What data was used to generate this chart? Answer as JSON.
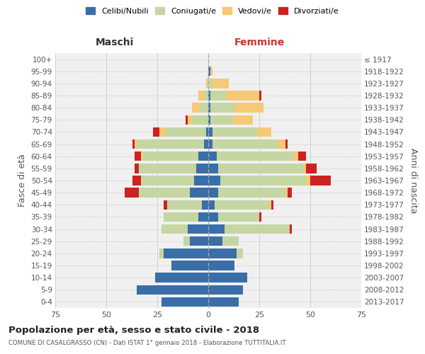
{
  "age_groups": [
    "0-4",
    "5-9",
    "10-14",
    "15-19",
    "20-24",
    "25-29",
    "30-34",
    "35-39",
    "40-44",
    "45-49",
    "50-54",
    "55-59",
    "60-64",
    "65-69",
    "70-74",
    "75-79",
    "80-84",
    "85-89",
    "90-94",
    "95-99",
    "100+"
  ],
  "birth_years": [
    "2013-2017",
    "2008-2012",
    "2003-2007",
    "1998-2002",
    "1993-1997",
    "1988-1992",
    "1983-1987",
    "1978-1982",
    "1973-1977",
    "1968-1972",
    "1963-1967",
    "1958-1962",
    "1953-1957",
    "1948-1952",
    "1943-1947",
    "1938-1942",
    "1933-1937",
    "1928-1932",
    "1923-1927",
    "1918-1922",
    "≤ 1917"
  ],
  "male": {
    "celibe": [
      23,
      35,
      26,
      18,
      22,
      9,
      10,
      5,
      3,
      9,
      7,
      6,
      5,
      2,
      1,
      0,
      0,
      0,
      0,
      0,
      0
    ],
    "coniugato": [
      0,
      0,
      0,
      0,
      2,
      3,
      13,
      17,
      17,
      25,
      26,
      28,
      27,
      33,
      20,
      8,
      4,
      2,
      0,
      0,
      0
    ],
    "vedovo": [
      0,
      0,
      0,
      0,
      0,
      0,
      0,
      0,
      0,
      0,
      0,
      0,
      1,
      1,
      3,
      2,
      4,
      3,
      1,
      0,
      0
    ],
    "divorziato": [
      0,
      0,
      0,
      0,
      0,
      0,
      0,
      0,
      2,
      7,
      4,
      2,
      3,
      1,
      3,
      1,
      0,
      0,
      0,
      0,
      0
    ]
  },
  "female": {
    "nubile": [
      15,
      17,
      19,
      13,
      14,
      7,
      8,
      5,
      3,
      5,
      6,
      5,
      4,
      2,
      2,
      1,
      1,
      1,
      0,
      1,
      0
    ],
    "coniugata": [
      0,
      0,
      0,
      0,
      3,
      8,
      32,
      20,
      27,
      33,
      42,
      42,
      38,
      32,
      22,
      11,
      12,
      8,
      2,
      0,
      0
    ],
    "vedova": [
      0,
      0,
      0,
      0,
      0,
      0,
      0,
      0,
      1,
      1,
      2,
      1,
      2,
      4,
      7,
      10,
      14,
      16,
      8,
      1,
      0
    ],
    "divorziata": [
      0,
      0,
      0,
      0,
      0,
      0,
      1,
      1,
      1,
      2,
      10,
      5,
      4,
      1,
      0,
      0,
      0,
      1,
      0,
      0,
      0
    ]
  },
  "colors": {
    "celibe": "#3a6ea8",
    "coniugato": "#c5d6a3",
    "vedovo": "#f5c975",
    "divorziato": "#cc2222"
  },
  "title": "Popolazione per età, sesso e stato civile - 2018",
  "subtitle": "COMUNE DI CASALGRASSO (CN) - Dati ISTAT 1° gennaio 2018 - Elaborazione TUTTITALIA.IT",
  "xlabel_left": "Maschi",
  "xlabel_right": "Femmine",
  "ylabel_left": "Fasce di età",
  "ylabel_right": "Anni di nascita",
  "xlim": 75,
  "bg_color": "#f0f0f0",
  "grid_color": "#cccccc"
}
